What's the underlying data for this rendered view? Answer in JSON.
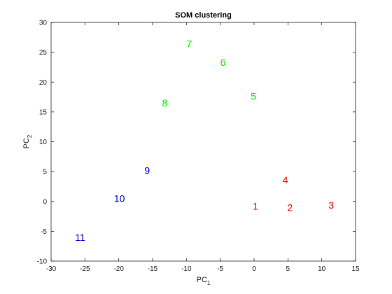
{
  "chart_data": {
    "type": "scatter",
    "title": "SOM clustering",
    "xlabel": {
      "base": "PC",
      "sub": "1"
    },
    "ylabel": {
      "base": "PC",
      "sub": "2"
    },
    "xlim": [
      -30,
      15
    ],
    "ylim": [
      -10,
      30
    ],
    "xticks": [
      -30,
      -25,
      -20,
      -15,
      -10,
      -5,
      0,
      5,
      10,
      15
    ],
    "yticks": [
      -10,
      -5,
      0,
      5,
      10,
      15,
      20,
      25,
      30
    ],
    "grid": false,
    "marker": "text-label",
    "points": [
      {
        "label": "1",
        "x": 0.2,
        "y": -0.8,
        "color": "#ff0000"
      },
      {
        "label": "2",
        "x": 5.3,
        "y": -1.0,
        "color": "#ff0000"
      },
      {
        "label": "3",
        "x": 11.4,
        "y": -0.6,
        "color": "#ff0000"
      },
      {
        "label": "4",
        "x": 4.6,
        "y": 3.6,
        "color": "#ff0000"
      },
      {
        "label": "5",
        "x": -0.1,
        "y": 17.6,
        "color": "#00ee00"
      },
      {
        "label": "6",
        "x": -4.6,
        "y": 23.3,
        "color": "#00ee00"
      },
      {
        "label": "7",
        "x": -9.6,
        "y": 26.4,
        "color": "#00ee00"
      },
      {
        "label": "8",
        "x": -13.2,
        "y": 16.5,
        "color": "#00ee00"
      },
      {
        "label": "9",
        "x": -15.8,
        "y": 5.2,
        "color": "#0000dd"
      },
      {
        "label": "10",
        "x": -19.9,
        "y": 0.5,
        "color": "#0000dd"
      },
      {
        "label": "11",
        "x": -25.7,
        "y": -6.0,
        "color": "#0000dd"
      }
    ]
  }
}
